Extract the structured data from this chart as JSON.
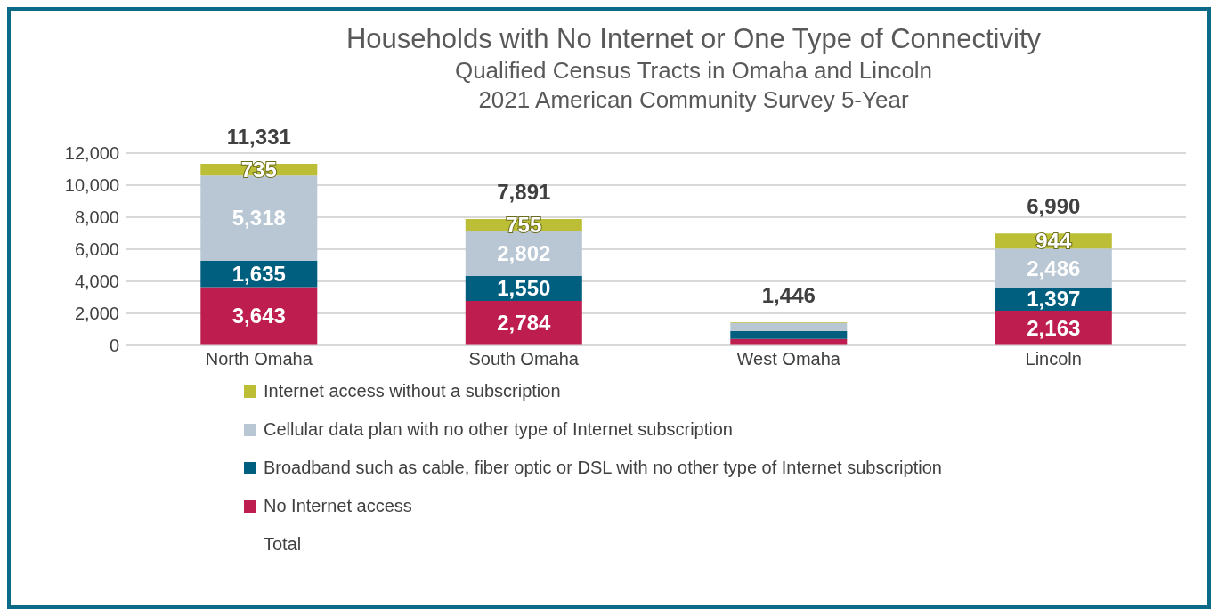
{
  "chart_data": {
    "type": "bar",
    "title": "Households with No Internet or One Type of Connectivity",
    "subtitle": "Qualified Census Tracts in Omaha and Lincoln\n2021 American Community Survey 5-Year",
    "categories": [
      "North Omaha",
      "South Omaha",
      "West Omaha",
      "Lincoln"
    ],
    "stacked": true,
    "series": [
      {
        "name": "No Internet access",
        "color": "#be1e4f",
        "values": [
          3643,
          2784,
          400,
          2163
        ],
        "value_labels": [
          "3,643",
          "2,784",
          null,
          "2,163"
        ]
      },
      {
        "name": "Broadband such as cable, fiber optic or DSL with no other type of Internet subscription",
        "color": "#005f7f",
        "values": [
          1635,
          1550,
          500,
          1397
        ],
        "value_labels": [
          "1,635",
          "1,550",
          null,
          "1,397"
        ]
      },
      {
        "name": "Cellular data plan with no other type of Internet subscription",
        "color": "#b8c7d3",
        "values": [
          5318,
          2802,
          500,
          2486
        ],
        "value_labels": [
          "5,318",
          "2,802",
          null,
          "2,486"
        ]
      },
      {
        "name": "Internet access without a subscription",
        "color": "#bcbf35",
        "values": [
          735,
          755,
          46,
          944
        ],
        "value_labels": [
          "735",
          "755",
          null,
          "944"
        ]
      }
    ],
    "totals": [
      "11,331",
      "7,891",
      "1,446",
      "6,990"
    ],
    "ylim": [
      0,
      12000
    ],
    "yticks": [
      {
        "value": 0,
        "label": "0"
      },
      {
        "value": 2000,
        "label": "2,000"
      },
      {
        "value": 4000,
        "label": "4,000"
      },
      {
        "value": 6000,
        "label": "6,000"
      },
      {
        "value": 8000,
        "label": "8,000"
      },
      {
        "value": 10000,
        "label": "10,000"
      },
      {
        "value": 12000,
        "label": "12,000"
      }
    ],
    "grid": "y",
    "legend": "bottom",
    "annotations": [
      "Total"
    ]
  }
}
